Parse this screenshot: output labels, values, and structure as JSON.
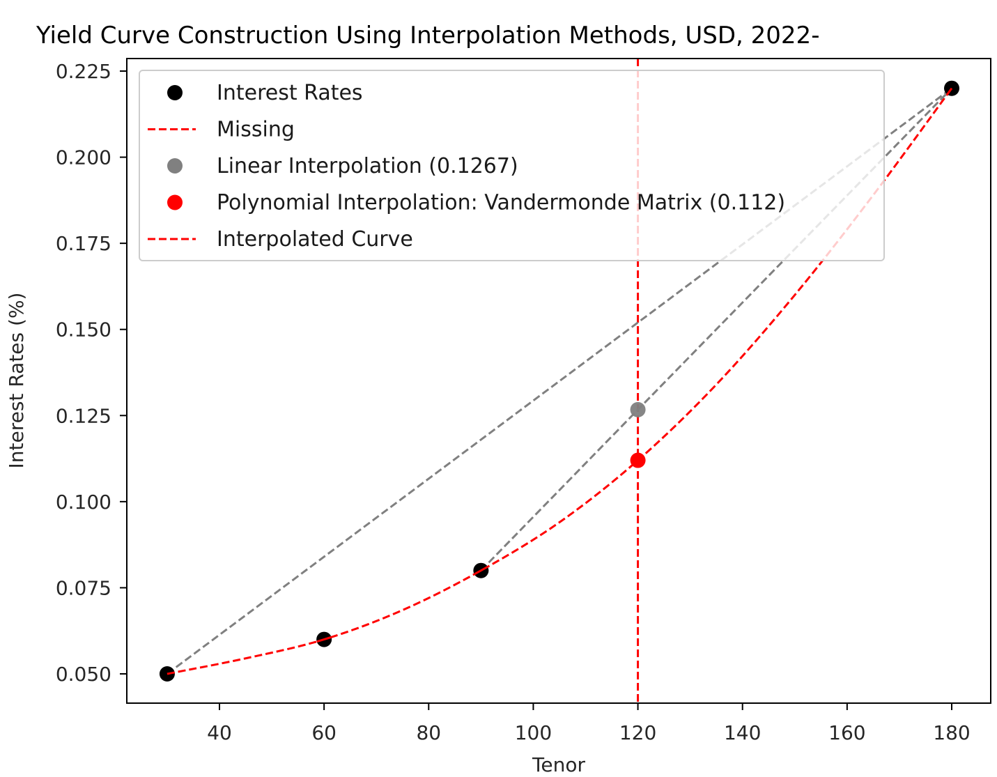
{
  "chart_data": {
    "type": "line",
    "title": "Yield Curve Construction Using Interpolation Methods, USD, 2022-",
    "xlabel": "Tenor",
    "ylabel": "Interest Rates (%)",
    "xlim": [
      22.5,
      187.5
    ],
    "ylim": [
      0.0415,
      0.2285
    ],
    "x_ticks": [
      40,
      60,
      80,
      100,
      120,
      140,
      160,
      180
    ],
    "y_ticks": [
      0.05,
      0.075,
      0.1,
      0.125,
      0.15,
      0.175,
      0.2,
      0.225
    ],
    "x_tick_labels": [
      "40",
      "60",
      "80",
      "100",
      "120",
      "140",
      "160",
      "180"
    ],
    "y_tick_labels": [
      "0.050",
      "0.075",
      "0.100",
      "0.125",
      "0.150",
      "0.175",
      "0.200",
      "0.225"
    ],
    "grid": false,
    "legend_position": "upper left",
    "series": [
      {
        "name": "Interest Rates",
        "kind": "scatter",
        "color": "#000000",
        "x": [
          30,
          60,
          90,
          180
        ],
        "y": [
          0.05,
          0.06,
          0.08,
          0.22
        ]
      },
      {
        "name": "Missing",
        "kind": "vline",
        "color": "#ff0000",
        "style": "dashed",
        "x": 120
      },
      {
        "name": "Linear Interpolation (0.1267)",
        "kind": "scatter",
        "color": "#808080",
        "x": [
          120
        ],
        "y": [
          0.1267
        ]
      },
      {
        "name": "Polynomial Interpolation: Vandermonde Matrix (0.112)",
        "kind": "scatter",
        "color": "#ff0000",
        "x": [
          120
        ],
        "y": [
          0.112
        ]
      },
      {
        "name": "Interpolated Curve",
        "kind": "line",
        "color": "#ff0000",
        "style": "dashed",
        "x": [
          30,
          45,
          60,
          75,
          90,
          105,
          120,
          135,
          150,
          165,
          180
        ],
        "y": [
          0.05,
          0.0545,
          0.06,
          0.0685,
          0.08,
          0.094,
          0.112,
          0.134,
          0.16,
          0.189,
          0.22
        ]
      },
      {
        "name": "linear-segment-wide",
        "kind": "line",
        "color": "#808080",
        "style": "dashed",
        "legend": false,
        "x": [
          30,
          180
        ],
        "y": [
          0.05,
          0.22
        ]
      },
      {
        "name": "linear-segment-local",
        "kind": "line",
        "color": "#808080",
        "style": "dashed",
        "legend": false,
        "x": [
          90,
          120,
          180
        ],
        "y": [
          0.08,
          0.1267,
          0.22
        ]
      }
    ]
  },
  "legend": {
    "items": [
      {
        "label": "Interest Rates",
        "marker": "dot",
        "color": "#000000"
      },
      {
        "label": "Missing",
        "marker": "dash",
        "color": "#ff0000"
      },
      {
        "label": "Linear Interpolation (0.1267)",
        "marker": "dot",
        "color": "#808080"
      },
      {
        "label": "Polynomial Interpolation: Vandermonde Matrix (0.112)",
        "marker": "dot",
        "color": "#ff0000"
      },
      {
        "label": "Interpolated Curve",
        "marker": "dash",
        "color": "#ff0000"
      }
    ]
  },
  "colors": {
    "points": "#000000",
    "linear": "#808080",
    "polynomial": "#ff0000",
    "frame": "#000000"
  }
}
